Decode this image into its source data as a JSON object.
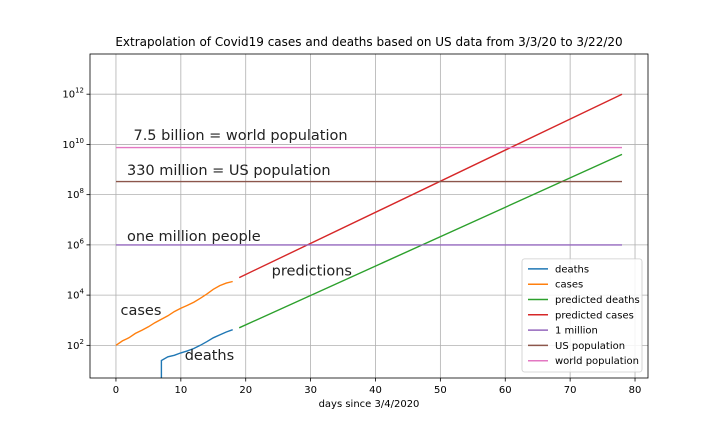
{
  "chart_data": {
    "type": "line",
    "title": "Extrapolation of Covid19 cases and deaths based on US data from 3/3/20 to 3/22/20",
    "xlabel": "days since 3/4/2020",
    "ylabel": "",
    "y_scale": "log",
    "xlim": [
      -4,
      82
    ],
    "ylim_log10": [
      0.7,
      13.6
    ],
    "x_ticks": [
      0,
      10,
      20,
      30,
      40,
      50,
      60,
      70,
      80
    ],
    "x_tick_labels": [
      "0",
      "10",
      "20",
      "30",
      "40",
      "50",
      "60",
      "70",
      "80"
    ],
    "y_ticks_log10": [
      2,
      4,
      6,
      8,
      10,
      12
    ],
    "y_tick_labels": [
      {
        "base": "10",
        "exp": "2"
      },
      {
        "base": "10",
        "exp": "4"
      },
      {
        "base": "10",
        "exp": "6"
      },
      {
        "base": "10",
        "exp": "8"
      },
      {
        "base": "10",
        "exp": "10"
      },
      {
        "base": "10",
        "exp": "12"
      }
    ],
    "grid": true,
    "legend_position": "lower-right",
    "series": [
      {
        "name": "deaths",
        "color": "#1f77b4",
        "x": [
          7,
          7,
          8,
          9,
          10,
          11,
          12,
          13,
          14,
          15,
          16,
          17,
          18
        ],
        "y": [
          1,
          25,
          35,
          40,
          50,
          60,
          75,
          100,
          140,
          200,
          260,
          340,
          420
        ]
      },
      {
        "name": "cases",
        "color": "#ff7f0e",
        "x": [
          0,
          1,
          2,
          3,
          4,
          5,
          6,
          7,
          8,
          9,
          10,
          11,
          12,
          13,
          14,
          15,
          16,
          17,
          18
        ],
        "y": [
          100,
          150,
          200,
          300,
          400,
          550,
          800,
          1100,
          1500,
          2200,
          3000,
          3900,
          5200,
          7500,
          11000,
          17000,
          24000,
          30000,
          35000
        ]
      },
      {
        "name": "predicted deaths",
        "color": "#2ca02c",
        "x": [
          19,
          78
        ],
        "y": [
          500,
          4000000000
        ]
      },
      {
        "name": "predicted cases",
        "color": "#d62728",
        "x": [
          19,
          78
        ],
        "y": [
          50000,
          1000000000000
        ]
      },
      {
        "name": "1 million",
        "color": "#9467bd",
        "x": [
          0,
          78
        ],
        "y": [
          1000000,
          1000000
        ]
      },
      {
        "name": "US population",
        "color": "#8c564b",
        "x": [
          0,
          78
        ],
        "y": [
          330000000,
          330000000
        ]
      },
      {
        "name": "world population",
        "color": "#e377c2",
        "x": [
          0,
          78
        ],
        "y": [
          7500000000,
          7500000000
        ]
      }
    ],
    "annotations": [
      {
        "text": "7.5 billion = world population",
        "x": 2.7,
        "y": 15000000000
      },
      {
        "text": "330 million = US population",
        "x": 1.7,
        "y": 600000000
      },
      {
        "text": "one million people",
        "x": 1.7,
        "y": 1400000
      },
      {
        "text": "predictions",
        "x": 24,
        "y": 60000
      },
      {
        "text": "cases",
        "x": 0.7,
        "y": 1600
      },
      {
        "text": "deaths",
        "x": 10.6,
        "y": 26
      }
    ]
  }
}
